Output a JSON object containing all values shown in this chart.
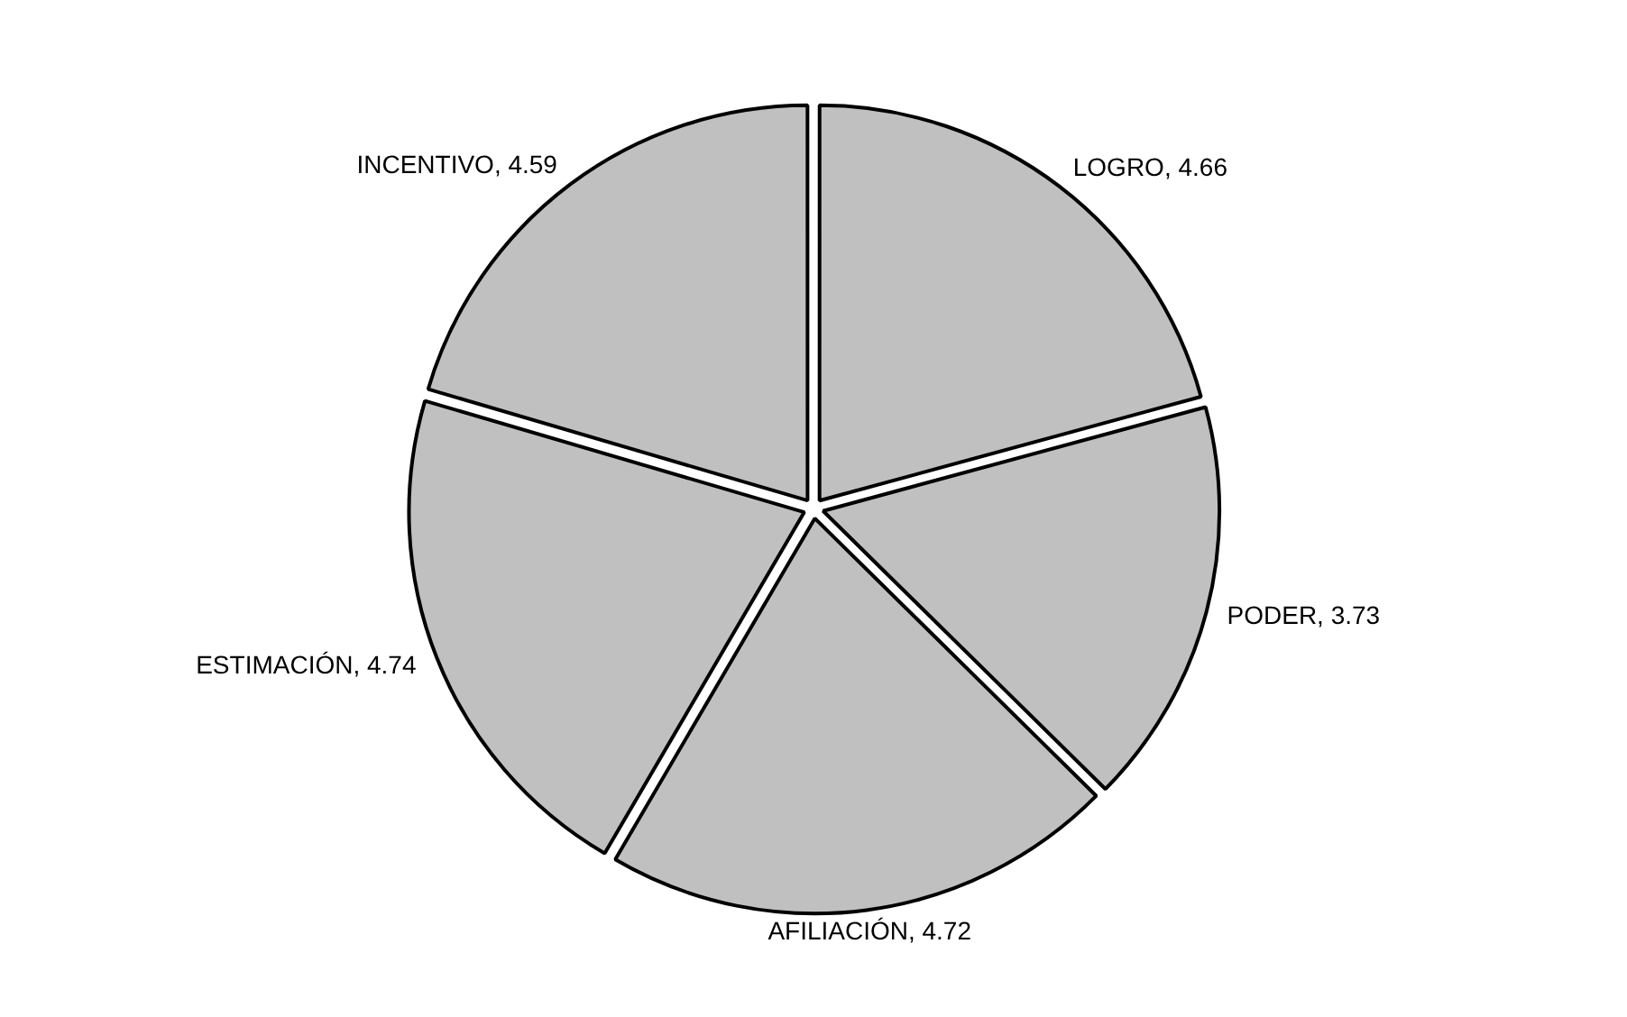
{
  "chart_data": {
    "type": "pie",
    "categories": [
      "LOGRO",
      "PODER",
      "AFILIACIÓN",
      "ESTIMACIÓN",
      "INCENTIVO"
    ],
    "values": [
      4.66,
      3.73,
      4.72,
      4.74,
      4.59
    ],
    "colors": [
      "#c0c0c0",
      "#c0c0c0",
      "#c0c0c0",
      "#c0c0c0",
      "#c0c0c0"
    ],
    "value_labels": [
      ", 4.66",
      ", 3.73",
      ", 4.72",
      ", 4.74",
      ", 4.59"
    ],
    "legend": false
  }
}
